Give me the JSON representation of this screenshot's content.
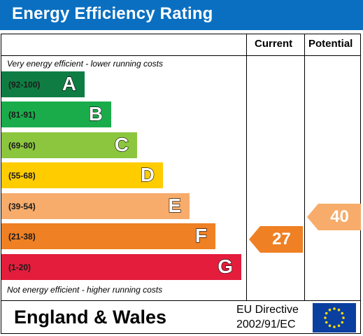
{
  "header": {
    "title": "Energy Efficiency Rating"
  },
  "columns": {
    "current": "Current",
    "potential": "Potential"
  },
  "captions": {
    "top": "Very energy efficient - lower running costs",
    "bottom": "Not energy efficient - higher running costs"
  },
  "bands": [
    {
      "range": "(92-100)",
      "letter": "A",
      "color": "#0f7d43"
    },
    {
      "range": "(81-91)",
      "letter": "B",
      "color": "#1aac4b"
    },
    {
      "range": "(69-80)",
      "letter": "C",
      "color": "#8cc63e"
    },
    {
      "range": "(55-68)",
      "letter": "D",
      "color": "#ffcc00"
    },
    {
      "range": "(39-54)",
      "letter": "E",
      "color": "#f7ac6b"
    },
    {
      "range": "(21-38)",
      "letter": "F",
      "color": "#ef8023"
    },
    {
      "range": "(1-20)",
      "letter": "G",
      "color": "#e41d3c"
    }
  ],
  "ratings": {
    "current": {
      "value": "27",
      "color": "#ef8023"
    },
    "potential": {
      "value": "40",
      "color": "#f7ac6b"
    }
  },
  "footer": {
    "country": "England & Wales",
    "directive_line1": "EU Directive",
    "directive_line2": "2002/91/EC",
    "flag_icon": "eu-flag-icon"
  }
}
